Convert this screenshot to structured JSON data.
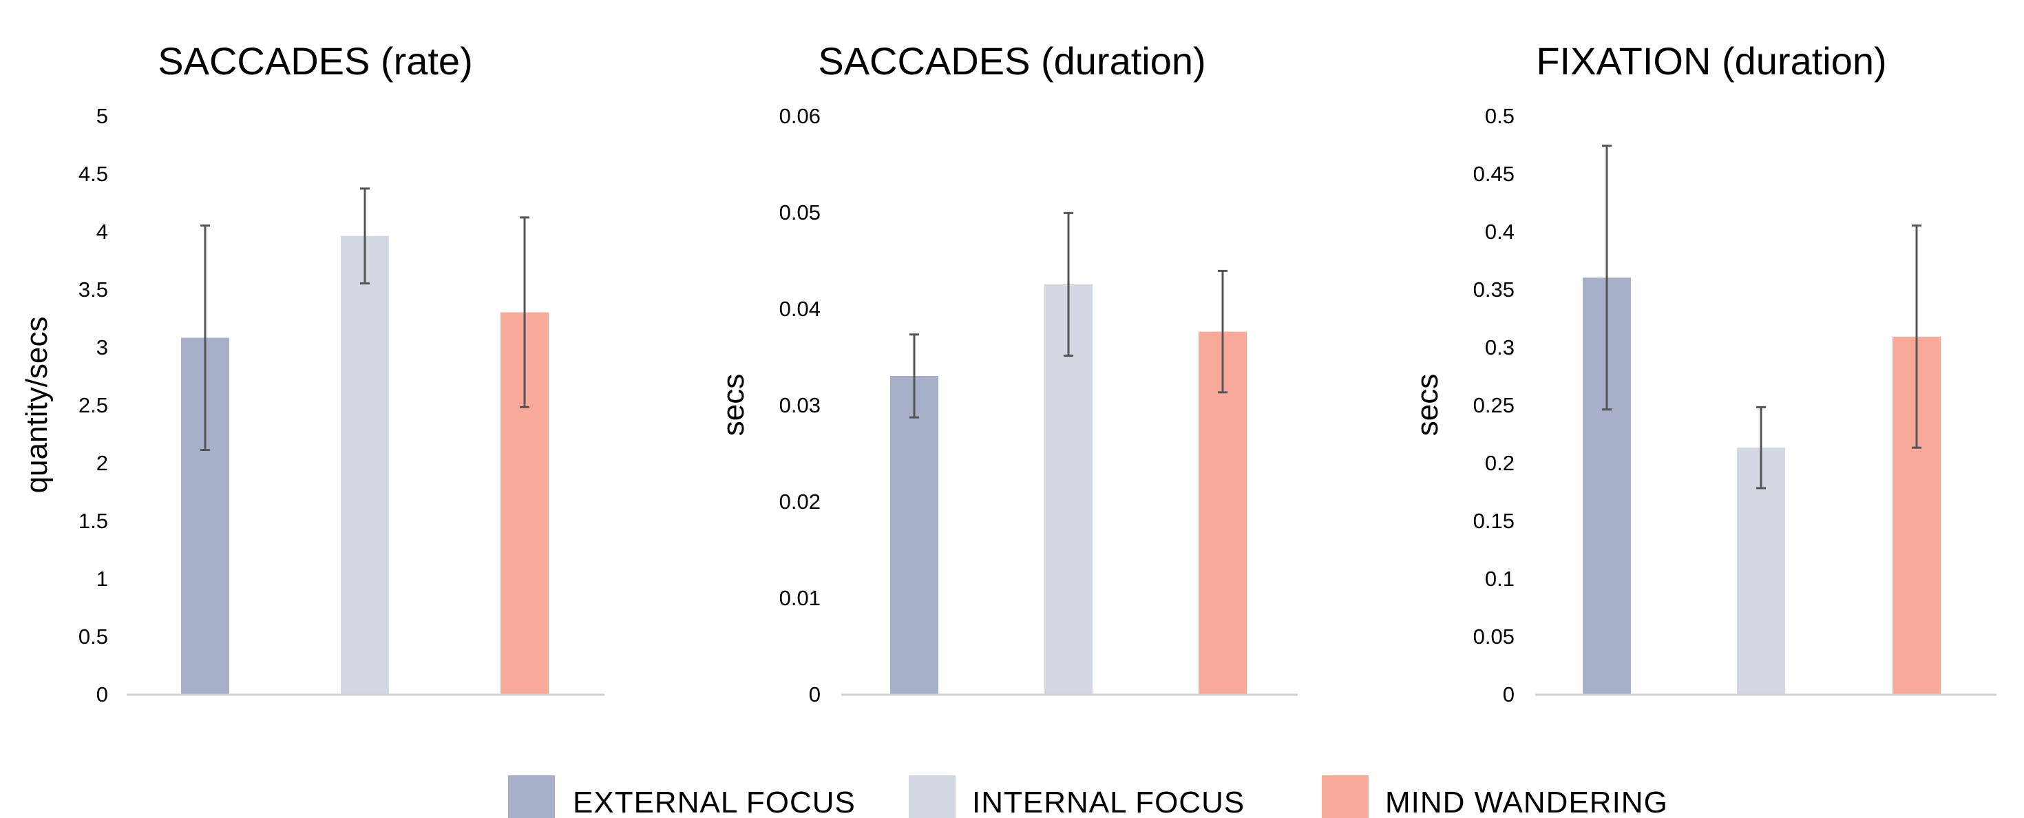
{
  "legend": [
    {
      "label": "EXTERNAL FOCUS",
      "color": "#a7b0c8"
    },
    {
      "label": "INTERNAL FOCUS",
      "color": "#d3d7e2"
    },
    {
      "label": "MIND WANDERING",
      "color": "#f7aa9a"
    }
  ],
  "chart_data": [
    {
      "type": "bar",
      "title": "SACCADES (rate)",
      "xlabel": "",
      "ylabel": "quantity/secs",
      "ylim": [
        0,
        5
      ],
      "yticks": [
        "0",
        "0.5",
        "1",
        "1.5",
        "2",
        "2.5",
        "3",
        "3.5",
        "4",
        "4.5",
        "5"
      ],
      "grid": false,
      "categories": [
        "EXTERNAL FOCUS",
        "INTERNAL FOCUS",
        "MIND WANDERING"
      ],
      "values": [
        3.08,
        3.96,
        3.3
      ],
      "error": [
        0.97,
        0.41,
        0.82
      ]
    },
    {
      "type": "bar",
      "title": "SACCADES (duration)",
      "xlabel": "",
      "ylabel": "secs",
      "ylim": [
        0,
        0.06
      ],
      "yticks": [
        "0",
        "0.01",
        "0.02",
        "0.03",
        "0.04",
        "0.05",
        "0.06"
      ],
      "grid": false,
      "categories": [
        "EXTERNAL FOCUS",
        "INTERNAL FOCUS",
        "MIND WANDERING"
      ],
      "values": [
        0.033,
        0.0425,
        0.0376
      ],
      "error": [
        0.0043,
        0.0074,
        0.0063
      ]
    },
    {
      "type": "bar",
      "title": "FIXATION (duration)",
      "xlabel": "",
      "ylabel": "secs",
      "ylim": [
        0,
        0.5
      ],
      "yticks": [
        "0",
        "0.05",
        "0.1",
        "0.15",
        "0.2",
        "0.25",
        "0.3",
        "0.35",
        "0.4",
        "0.45",
        "0.5"
      ],
      "grid": false,
      "categories": [
        "EXTERNAL FOCUS",
        "INTERNAL FOCUS",
        "MIND WANDERING"
      ],
      "values": [
        0.36,
        0.213,
        0.309
      ],
      "error": [
        0.114,
        0.035,
        0.096
      ]
    }
  ]
}
